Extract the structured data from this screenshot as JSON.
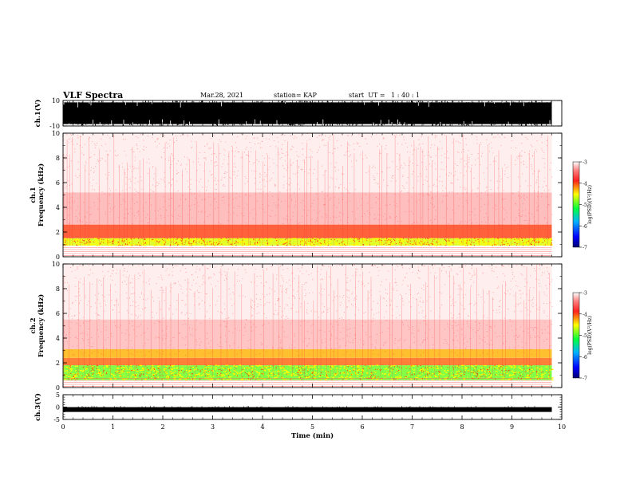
{
  "header": {
    "title": "VLF Spectra",
    "date": "Mar.28, 2021",
    "station": "station= KAP",
    "start_ut": "start  UT =   1 : 40 : 1"
  },
  "chart_data": [
    {
      "type": "line",
      "panel": "ch1-waveform",
      "ylabel": "ch.1(V)",
      "ylim": [
        -10,
        10
      ],
      "yticks": [
        "10",
        "-10"
      ],
      "xlim": [
        0,
        10
      ],
      "data_end_min": 9.8,
      "note_visual": "dense black waveform saturating between -10 and 10 V"
    },
    {
      "type": "heatmap",
      "panel": "ch1-spectrogram",
      "ylabel": "ch.1 Frequency (kHz)",
      "ylabel_lines": [
        "ch.1",
        "Frequency  (kHz)"
      ],
      "ylim": [
        0,
        10
      ],
      "yticks": [
        "0",
        "2",
        "4",
        "6",
        "8",
        "10"
      ],
      "xlim": [
        0,
        10
      ],
      "data_end_min": 9.8,
      "colorbar": {
        "label": "log(PSD)(V²/Hz)",
        "range": [
          -7,
          -3
        ],
        "ticks": [
          "-3",
          "-4",
          "-5",
          "-6",
          "-7"
        ]
      },
      "bands": [
        {
          "f_low": 0.9,
          "f_high": 1.5,
          "level": -4.6
        },
        {
          "f_low": 1.5,
          "f_high": 2.6,
          "level": -4.0
        },
        {
          "f_low": 2.6,
          "f_high": 5.2,
          "level": -3.7
        },
        {
          "f_low": 5.2,
          "f_high": 10,
          "level": -3.3
        }
      ]
    },
    {
      "type": "heatmap",
      "panel": "ch2-spectrogram",
      "ylabel": "ch.2 Frequency (kHz)",
      "ylabel_lines": [
        "ch.2",
        "Frequency  (kHz)"
      ],
      "ylim": [
        0,
        10
      ],
      "yticks": [
        "0",
        "2",
        "4",
        "6",
        "8",
        "10"
      ],
      "xlim": [
        0,
        10
      ],
      "data_end_min": 9.8,
      "colorbar": {
        "label": "log(PSD)(V²/Hz)",
        "range": [
          -7,
          -3
        ],
        "ticks": [
          "-3",
          "-4",
          "-5",
          "-6",
          "-7"
        ]
      },
      "bands": [
        {
          "f_low": 0.6,
          "f_high": 1.8,
          "level": -4.9
        },
        {
          "f_low": 1.8,
          "f_high": 2.4,
          "level": -4.1
        },
        {
          "f_low": 2.4,
          "f_high": 3.1,
          "level": -4.3
        },
        {
          "f_low": 3.1,
          "f_high": 5.5,
          "level": -3.6
        },
        {
          "f_low": 5.5,
          "f_high": 10,
          "level": -3.3
        }
      ]
    },
    {
      "type": "line",
      "panel": "ch3-waveform",
      "ylabel": "ch.3(V)",
      "ylim": [
        -5,
        5
      ],
      "yticks": [
        "5",
        "0",
        "-5"
      ],
      "xlim": [
        0,
        10
      ],
      "xlabel": "Time  (min)",
      "xticks": [
        "0",
        "1",
        "2",
        "3",
        "4",
        "5",
        "6",
        "7",
        "8",
        "9",
        "10"
      ],
      "data_end_min": 9.8,
      "trace_level_v": -1
    }
  ]
}
